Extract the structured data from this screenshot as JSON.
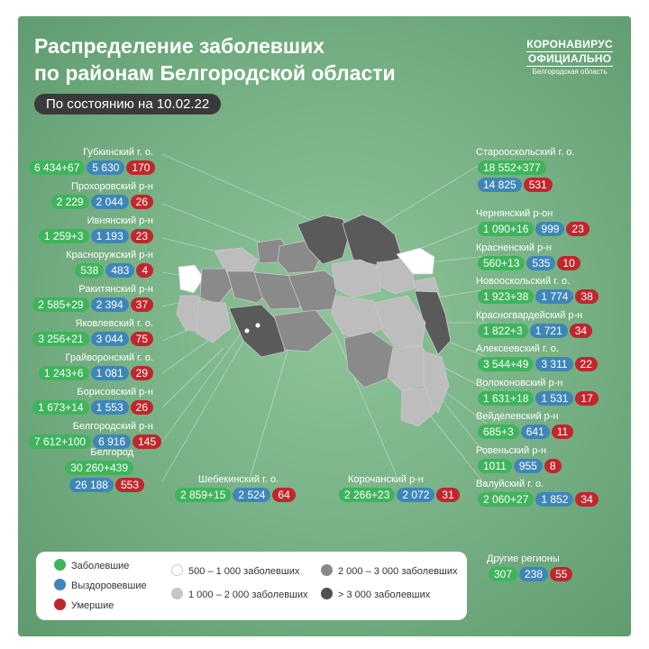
{
  "title_line1": "Распределение заболевших",
  "title_line2": "по районам Белгородской области",
  "date": "По состоянию на 10.02.22",
  "brand": {
    "line1": "КОРОНАВИРУС",
    "line2": "ОФИЦИАЛЬНО",
    "line3": "Белгородская область"
  },
  "colors": {
    "sick": "#3fb45c",
    "recovered": "#3f86b8",
    "dead": "#c0272d",
    "background": "#79b387"
  },
  "districts_left": [
    {
      "name": "Губкинский г. о.",
      "sick": "6 434+67",
      "recovered": "5 630",
      "dead": "170"
    },
    {
      "name": "Прохоровский р-н",
      "sick": "2 229",
      "recovered": "2 044",
      "dead": "26"
    },
    {
      "name": "Ивнянский р-н",
      "sick": "1 259+3",
      "recovered": "1 193",
      "dead": "23"
    },
    {
      "name": "Красноружский р-н",
      "sick": "538",
      "recovered": "483",
      "dead": "4"
    },
    {
      "name": "Ракитянский р-н",
      "sick": "2 585+29",
      "recovered": "2 394",
      "dead": "37"
    },
    {
      "name": "Яковлевский г. о.",
      "sick": "3 256+21",
      "recovered": "3 044",
      "dead": "75"
    },
    {
      "name": "Грайворонский г. о.",
      "sick": "1 243+6",
      "recovered": "1 081",
      "dead": "29"
    },
    {
      "name": "Борисовский р-н",
      "sick": "1 673+14",
      "recovered": "1 553",
      "dead": "26"
    },
    {
      "name": "Белгородский р-н",
      "sick": "7 612+100",
      "recovered": "6 916",
      "dead": "145"
    }
  ],
  "belgorod": {
    "name": "Белгород",
    "sick": "30 260+439",
    "recovered": "26 188",
    "dead": "553"
  },
  "districts_right": [
    {
      "name": "Чернянский р-он",
      "sick": "1 090+16",
      "recovered": "999",
      "dead": "23"
    },
    {
      "name": "Красненский р-н",
      "sick": "560+13",
      "recovered": "535",
      "dead": "10"
    },
    {
      "name": "Новооскольский г. о.",
      "sick": "1 923+38",
      "recovered": "1 774",
      "dead": "38"
    },
    {
      "name": "Красногвардейский р-н",
      "sick": "1 822+3",
      "recovered": "1 721",
      "dead": "34"
    },
    {
      "name": "Алексеевский г. о.",
      "sick": "3 544+49",
      "recovered": "3 311",
      "dead": "22"
    },
    {
      "name": "Волоконовский р-н",
      "sick": "1 631+18",
      "recovered": "1 531",
      "dead": "17"
    },
    {
      "name": "Вейделевский р-н",
      "sick": "685+3",
      "recovered": "641",
      "dead": "11"
    },
    {
      "name": "Ровеньский р-н",
      "sick": "1011",
      "recovered": "955",
      "dead": "8"
    },
    {
      "name": "Валуйский г. о.",
      "sick": "2 060+27",
      "recovered": "1 852",
      "dead": "34"
    }
  ],
  "staroskol": {
    "name": "Старооскольский г. о.",
    "sick": "18 552+377",
    "recovered": "14 825",
    "dead": "531"
  },
  "shebekino": {
    "name": "Шебекинский г. о.",
    "sick": "2 859+15",
    "recovered": "2 524",
    "dead": "64"
  },
  "korocha": {
    "name": "Корочанский р-н",
    "sick": "2 266+23",
    "recovered": "2 072",
    "dead": "31"
  },
  "other": {
    "name": "Другие регионы",
    "sick": "307",
    "recovered": "238",
    "dead": "55"
  },
  "legend": {
    "sick": "Заболевшие",
    "recovered": "Выздоровевшие",
    "dead": "Умершие",
    "c1": "500 – 1 000 заболевших",
    "c2": "1 000 – 2 000 заболевших",
    "c3": "2 000 – 3 000 заболевших",
    "c4": "> 3 000 заболевших"
  }
}
